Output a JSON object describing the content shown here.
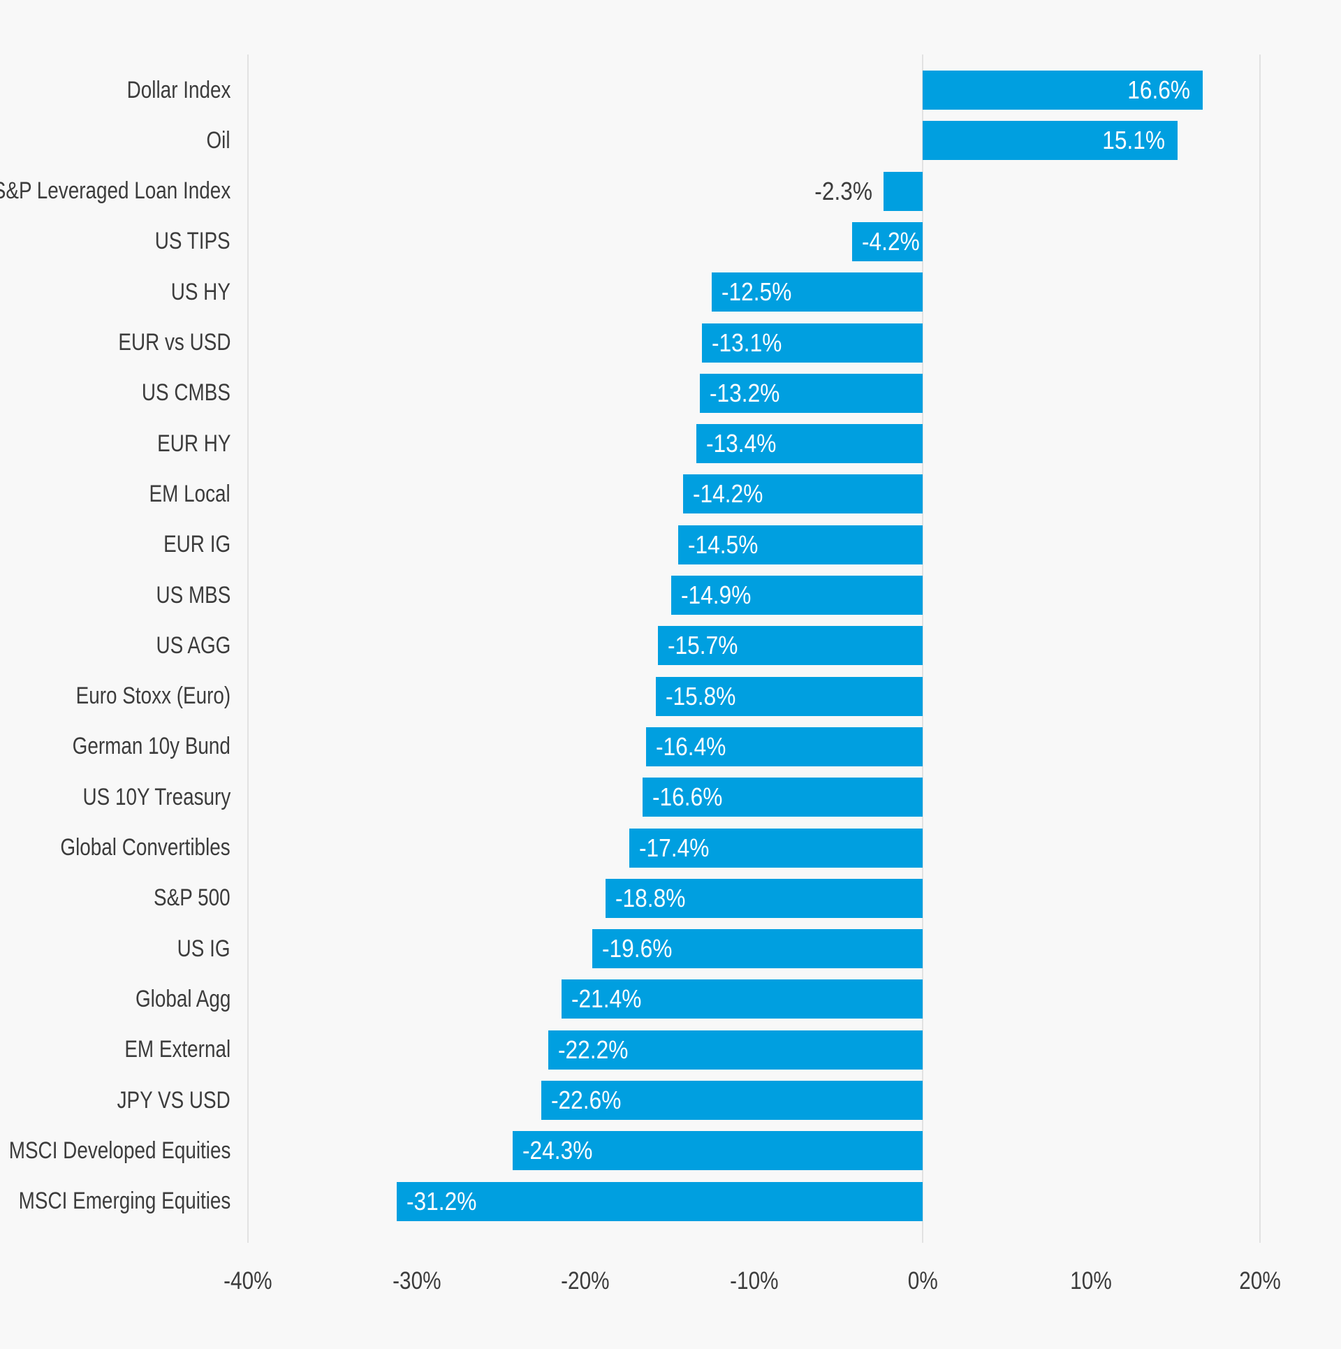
{
  "chart_data": {
    "type": "bar",
    "orientation": "horizontal",
    "title": "",
    "xlabel": "",
    "ylabel": "",
    "xlim": [
      -40,
      20
    ],
    "grid": "vertical boundary lines at -40%, 0% and 20% only",
    "legend": "none",
    "bar_color": "#009fe0",
    "background_color": "#f8f8f8",
    "x_ticks": [
      {
        "value": -40,
        "label": "-40%"
      },
      {
        "value": -30,
        "label": "-30%"
      },
      {
        "value": -20,
        "label": "-20%"
      },
      {
        "value": -10,
        "label": "-10%"
      },
      {
        "value": 0,
        "label": "0%"
      },
      {
        "value": 10,
        "label": "10%"
      },
      {
        "value": 20,
        "label": "20%"
      }
    ],
    "gridlines_at": [
      -40,
      0,
      20
    ],
    "points": [
      {
        "category": "Dollar Index",
        "value": 16.6,
        "label": "16.6%",
        "label_inside": true
      },
      {
        "category": "Oil",
        "value": 15.1,
        "label": "15.1%",
        "label_inside": true
      },
      {
        "category": "S&P Leveraged Loan Index",
        "value": -2.3,
        "label": "-2.3%",
        "label_inside": false
      },
      {
        "category": "US TIPS",
        "value": -4.2,
        "label": "-4.2%",
        "label_inside": true
      },
      {
        "category": "US HY",
        "value": -12.5,
        "label": "-12.5%",
        "label_inside": true
      },
      {
        "category": "EUR vs USD",
        "value": -13.1,
        "label": "-13.1%",
        "label_inside": true
      },
      {
        "category": "US CMBS",
        "value": -13.2,
        "label": "-13.2%",
        "label_inside": true
      },
      {
        "category": "EUR HY",
        "value": -13.4,
        "label": "-13.4%",
        "label_inside": true
      },
      {
        "category": "EM Local",
        "value": -14.2,
        "label": "-14.2%",
        "label_inside": true
      },
      {
        "category": "EUR IG",
        "value": -14.5,
        "label": "-14.5%",
        "label_inside": true
      },
      {
        "category": "US MBS",
        "value": -14.9,
        "label": "-14.9%",
        "label_inside": true
      },
      {
        "category": "US AGG",
        "value": -15.7,
        "label": "-15.7%",
        "label_inside": true
      },
      {
        "category": "Euro Stoxx (Euro)",
        "value": -15.8,
        "label": "-15.8%",
        "label_inside": true
      },
      {
        "category": "German 10y Bund",
        "value": -16.4,
        "label": "-16.4%",
        "label_inside": true
      },
      {
        "category": "US 10Y Treasury",
        "value": -16.6,
        "label": "-16.6%",
        "label_inside": true
      },
      {
        "category": "Global Convertibles",
        "value": -17.4,
        "label": "-17.4%",
        "label_inside": true
      },
      {
        "category": "S&P 500",
        "value": -18.8,
        "label": "-18.8%",
        "label_inside": true
      },
      {
        "category": "US IG",
        "value": -19.6,
        "label": "-19.6%",
        "label_inside": true
      },
      {
        "category": "Global Agg",
        "value": -21.4,
        "label": "-21.4%",
        "label_inside": true
      },
      {
        "category": "EM External",
        "value": -22.2,
        "label": "-22.2%",
        "label_inside": true
      },
      {
        "category": "JPY VS USD",
        "value": -22.6,
        "label": "-22.6%",
        "label_inside": true
      },
      {
        "category": "MSCI Developed Equities",
        "value": -24.3,
        "label": "-24.3%",
        "label_inside": true
      },
      {
        "category": "MSCI Emerging Equities",
        "value": -31.2,
        "label": "-31.2%",
        "label_inside": true
      }
    ]
  },
  "style": {
    "accent_blue": "#009fe0",
    "text_color": "#3c3c3c",
    "gridline_color": "#e2e2e2",
    "inside_label_color": "#ffffff",
    "background": "#f8f8f8"
  }
}
